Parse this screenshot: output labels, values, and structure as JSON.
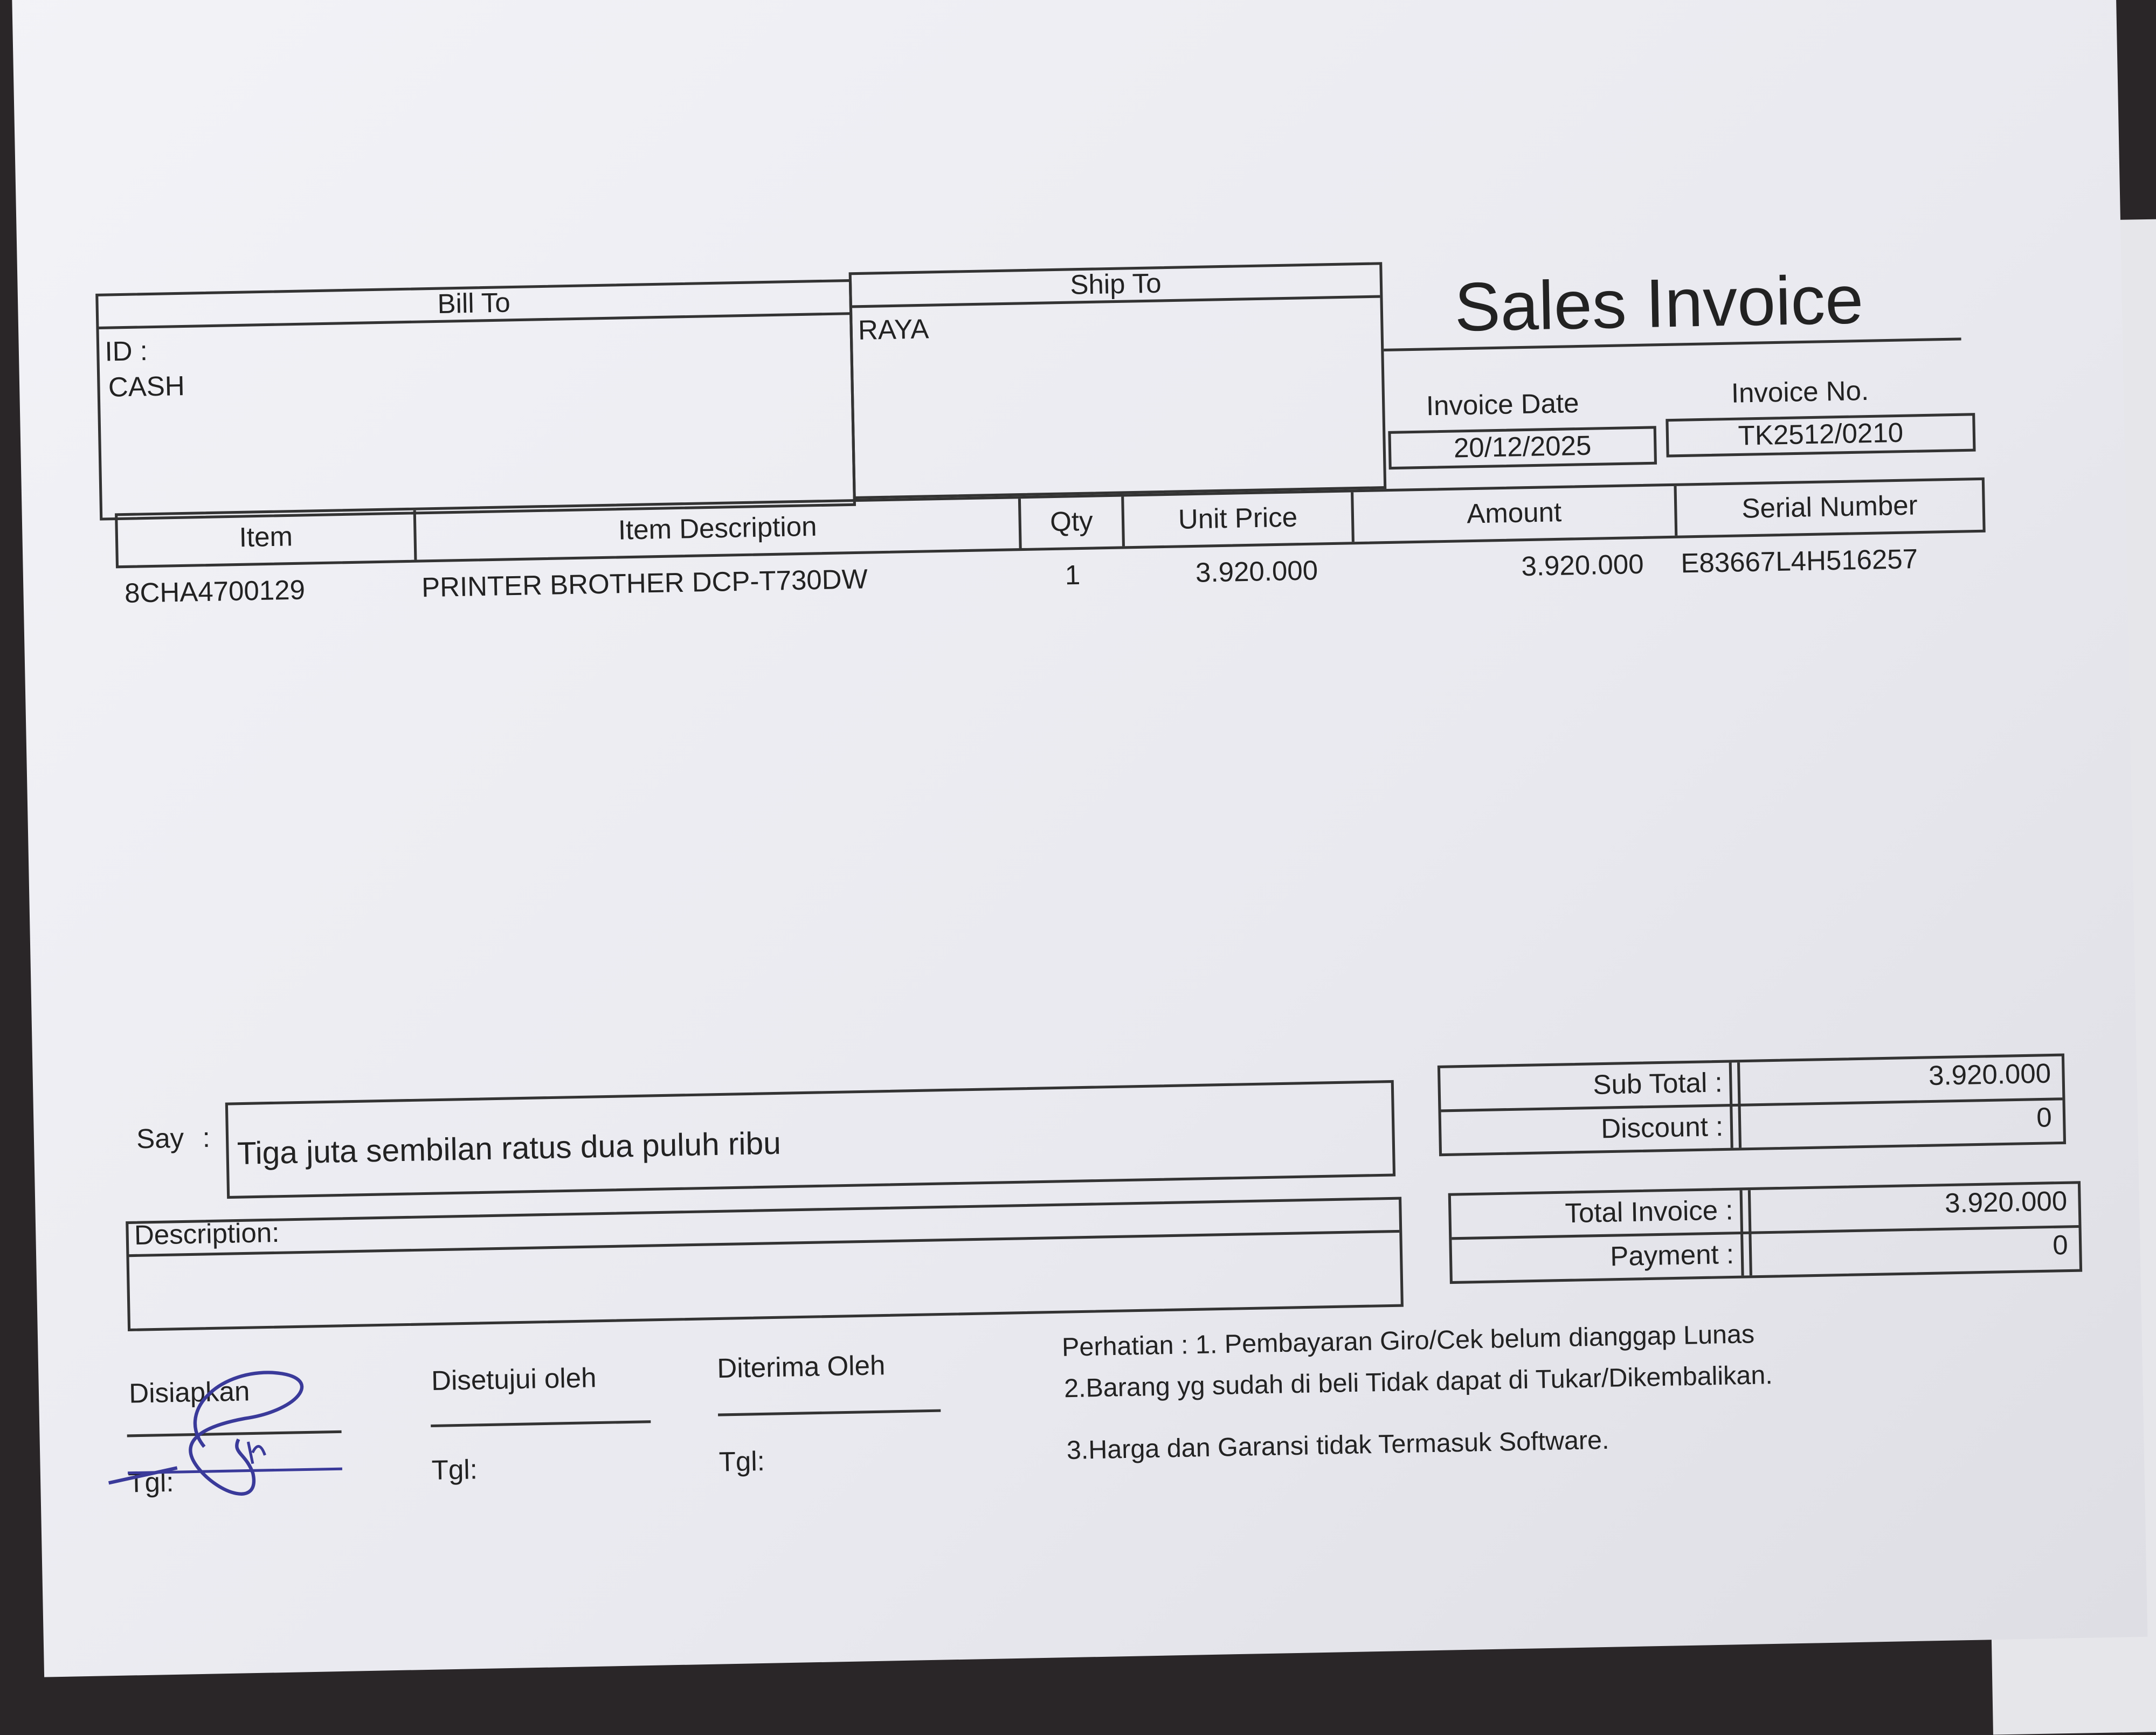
{
  "title": "Sales Invoice",
  "bill_to": {
    "label": "Bill To",
    "id_label": "ID :",
    "value": "CASH"
  },
  "ship_to": {
    "label": "Ship To",
    "value": "RAYA"
  },
  "invoice_date": {
    "label": "Invoice Date",
    "value": "20/12/2025"
  },
  "invoice_no": {
    "label": "Invoice No.",
    "value": "TK2512/0210"
  },
  "columns": [
    "Item",
    "Item Description",
    "Qty",
    "Unit Price",
    "Amount",
    "Serial Number"
  ],
  "rows": [
    {
      "item": "8CHA4700129",
      "description": "PRINTER BROTHER DCP-T730DW",
      "qty": "1",
      "unit_price": "3.920.000",
      "amount": "3.920.000",
      "serial": "E83667L4H516257"
    }
  ],
  "say": {
    "label": "Say",
    "colon": ":",
    "value": "Tiga juta sembilan ratus dua puluh ribu"
  },
  "description_label": "Description:",
  "totals": {
    "sub_total_label": "Sub Total :",
    "sub_total": "3.920.000",
    "discount_label": "Discount :",
    "discount": "0",
    "total_label": "Total Invoice :",
    "total": "3.920.000",
    "payment_label": "Payment :",
    "payment": "0"
  },
  "signatures": {
    "prepared": "Disiapkan",
    "approved": "Disetujui oleh",
    "received": "Diterima Oleh",
    "date_label": "Tgl:"
  },
  "notes": [
    "Perhatian : 1. Pembayaran Giro/Cek belum dianggap Lunas",
    "2.Barang yg sudah di beli Tidak dapat di Tukar/Dikembalikan.",
    "3.Harga dan Garansi tidak Termasuk Software."
  ],
  "colors": {
    "ink": "#222222",
    "signature": "#3a3a9a"
  }
}
